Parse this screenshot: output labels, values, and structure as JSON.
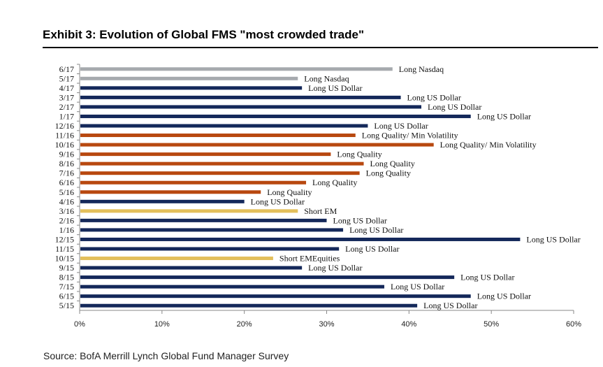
{
  "title": "Exhibit 3: Evolution of Global FMS \"most crowded trade\"",
  "source": "Source: BofA Merrill Lynch Global Fund Manager Survey",
  "colors": {
    "nasdaq": "#a6aaae",
    "usd": "#14285a",
    "quality": "#b8480f",
    "em": "#e3bf5b"
  },
  "chart_data": {
    "type": "bar",
    "orientation": "horizontal",
    "xlim": [
      0,
      60
    ],
    "xticks": [
      0,
      10,
      20,
      30,
      40,
      50,
      60
    ],
    "tick_suffix": "%",
    "grid": false,
    "bars": [
      {
        "category": "6/17",
        "value": 38,
        "label": "Long Nasdaq",
        "group": "nasdaq"
      },
      {
        "category": "5/17",
        "value": 26.5,
        "label": "Long Nasdaq",
        "group": "nasdaq"
      },
      {
        "category": "4/17",
        "value": 27,
        "label": "Long US Dollar",
        "group": "usd"
      },
      {
        "category": "3/17",
        "value": 39,
        "label": "Long US Dollar",
        "group": "usd"
      },
      {
        "category": "2/17",
        "value": 41.5,
        "label": "Long US Dollar",
        "group": "usd"
      },
      {
        "category": "1/17",
        "value": 47.5,
        "label": "Long US Dollar",
        "group": "usd"
      },
      {
        "category": "12/16",
        "value": 35,
        "label": "Long US Dollar",
        "group": "usd"
      },
      {
        "category": "11/16",
        "value": 33.5,
        "label": "Long Quality/ Min Volatility",
        "group": "quality"
      },
      {
        "category": "10/16",
        "value": 43,
        "label": "Long Quality/ Min Volatility",
        "group": "quality"
      },
      {
        "category": "9/16",
        "value": 30.5,
        "label": "Long Quality",
        "group": "quality"
      },
      {
        "category": "8/16",
        "value": 34.5,
        "label": "Long Quality",
        "group": "quality"
      },
      {
        "category": "7/16",
        "value": 34,
        "label": "Long Quality",
        "group": "quality"
      },
      {
        "category": "6/16",
        "value": 27.5,
        "label": "Long Quality",
        "group": "quality"
      },
      {
        "category": "5/16",
        "value": 22,
        "label": "Long Quality",
        "group": "quality"
      },
      {
        "category": "4/16",
        "value": 20,
        "label": "Long US Dollar",
        "group": "usd"
      },
      {
        "category": "3/16",
        "value": 26.5,
        "label": "Short EM",
        "group": "em"
      },
      {
        "category": "2/16",
        "value": 30,
        "label": "Long US Dollar",
        "group": "usd"
      },
      {
        "category": "1/16",
        "value": 32,
        "label": "Long US Dollar",
        "group": "usd"
      },
      {
        "category": "12/15",
        "value": 53.5,
        "label": "Long US Dollar",
        "group": "usd"
      },
      {
        "category": "11/15",
        "value": 31.5,
        "label": "Long US Dollar",
        "group": "usd"
      },
      {
        "category": "10/15",
        "value": 23.5,
        "label": "Short EMEquities",
        "group": "em"
      },
      {
        "category": "9/15",
        "value": 27,
        "label": "Long US Dollar",
        "group": "usd"
      },
      {
        "category": "8/15",
        "value": 45.5,
        "label": "Long US Dollar",
        "group": "usd"
      },
      {
        "category": "7/15",
        "value": 37,
        "label": "Long US Dollar",
        "group": "usd"
      },
      {
        "category": "6/15",
        "value": 47.5,
        "label": "Long US Dollar",
        "group": "usd"
      },
      {
        "category": "5/15",
        "value": 41,
        "label": "Long US Dollar",
        "group": "usd"
      }
    ]
  }
}
